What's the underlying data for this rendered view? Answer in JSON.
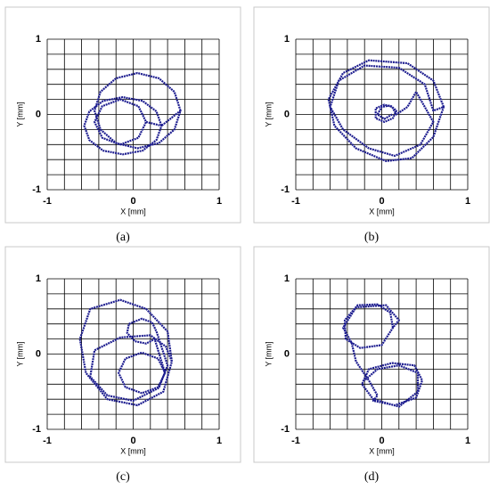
{
  "chart_data": [
    {
      "type": "line",
      "caption": "(a)",
      "x_label": "X [mm]",
      "y_label": "Y [mm]",
      "color": "#1c1c8f",
      "xlim": [
        -1,
        1
      ],
      "ylim": [
        -1,
        1
      ],
      "xticks": [
        -1,
        0,
        1
      ],
      "yticks": [
        -1,
        0,
        1
      ],
      "xgrid": [
        -1,
        -0.8,
        -0.6,
        -0.4,
        -0.2,
        0,
        0.2,
        0.4,
        0.6,
        0.8,
        1
      ],
      "ygrid": [
        -1,
        -0.8,
        -0.6,
        -0.4,
        -0.2,
        0,
        0.2,
        0.4,
        0.6,
        0.8,
        1
      ],
      "x": [
        0.55,
        0.48,
        0.3,
        0.05,
        -0.2,
        -0.38,
        -0.45,
        -0.38,
        -0.2,
        0.05,
        0.3,
        0.48,
        0.55,
        0.33,
        0.27,
        0.11,
        -0.12,
        -0.35,
        -0.51,
        -0.57,
        -0.51,
        -0.35,
        -0.12,
        0.11,
        0.27,
        0.33,
        0.15,
        0.06,
        -0.15,
        -0.36,
        -0.45,
        -0.36,
        -0.15,
        0.06,
        0.15
      ],
      "values": [
        0.05,
        0.3,
        0.48,
        0.55,
        0.48,
        0.3,
        0.05,
        -0.2,
        -0.38,
        -0.45,
        -0.38,
        -0.2,
        0.05,
        -0.15,
        0.04,
        0.18,
        0.23,
        0.18,
        0.04,
        -0.15,
        -0.34,
        -0.48,
        -0.53,
        -0.48,
        -0.34,
        -0.15,
        -0.1,
        0.11,
        0.2,
        0.11,
        -0.1,
        -0.31,
        -0.4,
        -0.31,
        -0.1
      ]
    },
    {
      "type": "line",
      "caption": "(b)",
      "x_label": "X [mm]",
      "y_label": "Y [mm]",
      "color": "#1c1c8f",
      "xlim": [
        -1,
        1
      ],
      "ylim": [
        -1,
        1
      ],
      "xticks": [
        -1,
        0,
        1
      ],
      "yticks": [
        -1,
        0,
        1
      ],
      "xgrid": [
        -1,
        -0.8,
        -0.6,
        -0.4,
        -0.2,
        0,
        0.2,
        0.4,
        0.6,
        0.8,
        1
      ],
      "ygrid": [
        -1,
        -0.8,
        -0.6,
        -0.4,
        -0.2,
        0,
        0.2,
        0.4,
        0.6,
        0.8,
        1
      ],
      "x": [
        0.72,
        0.6,
        0.3,
        -0.15,
        -0.45,
        -0.62,
        -0.55,
        -0.3,
        0.05,
        0.35,
        0.6,
        0.72,
        0.6,
        0.5,
        0.2,
        -0.2,
        -0.5,
        -0.6,
        -0.45,
        -0.15,
        0.15,
        0.45,
        0.6,
        0.4,
        0.3,
        0.17,
        0.12,
        0.03,
        -0.07,
        -0.07,
        0.03,
        0.13,
        0.17,
        0.1,
        0,
        -0.05,
        0.03,
        0.12
      ],
      "values": [
        0.1,
        0.45,
        0.68,
        0.72,
        0.55,
        0.2,
        -0.15,
        -0.45,
        -0.62,
        -0.58,
        -0.3,
        0.1,
        0.05,
        0.4,
        0.62,
        0.65,
        0.45,
        0.1,
        -0.2,
        -0.45,
        -0.55,
        -0.4,
        -0.1,
        0.3,
        0.1,
        0,
        0.1,
        0.13,
        0.08,
        -0.05,
        -0.1,
        -0.05,
        0.05,
        0.12,
        0.1,
        0,
        -0.06,
        0
      ]
    },
    {
      "type": "line",
      "caption": "(c)",
      "x_label": "X [mm]",
      "y_label": "Y [mm]",
      "color": "#1c1c8f",
      "xlim": [
        -1,
        1
      ],
      "ylim": [
        -1,
        1
      ],
      "xticks": [
        -1,
        0,
        1
      ],
      "yticks": [
        -1,
        0,
        1
      ],
      "xgrid": [
        -1,
        -0.8,
        -0.6,
        -0.4,
        -0.2,
        0,
        0.2,
        0.4,
        0.6,
        0.8,
        1
      ],
      "ygrid": [
        -1,
        -0.8,
        -0.6,
        -0.4,
        -0.2,
        0,
        0.2,
        0.4,
        0.6,
        0.8,
        1
      ],
      "x": [
        0.45,
        0.4,
        0.15,
        -0.15,
        -0.5,
        -0.62,
        -0.55,
        -0.3,
        0.05,
        0.35,
        0.45,
        0.38,
        0.2,
        -0.15,
        -0.45,
        -0.5,
        -0.3,
        0,
        0.3,
        0.4,
        0.27,
        0.22,
        0.1,
        -0.05,
        -0.07,
        0.02,
        0.15,
        0.25,
        0.37,
        0.29,
        0.1,
        -0.09,
        -0.17,
        -0.09,
        0.1,
        0.29,
        0.37
      ],
      "values": [
        -0.1,
        0.3,
        0.6,
        0.72,
        0.6,
        0.2,
        -0.25,
        -0.6,
        -0.68,
        -0.5,
        -0.1,
        0.1,
        0.25,
        0.22,
        0.05,
        -0.3,
        -0.55,
        -0.62,
        -0.45,
        -0.15,
        0.3,
        0.42,
        0.47,
        0.4,
        0.28,
        0.17,
        0.14,
        0.2,
        -0.25,
        -0.06,
        0.02,
        -0.06,
        -0.25,
        -0.44,
        -0.52,
        -0.44,
        -0.25
      ]
    },
    {
      "type": "line",
      "caption": "(d)",
      "x_label": "X [mm]",
      "y_label": "Y [mm]",
      "color": "#1c1c8f",
      "xlim": [
        -1,
        1
      ],
      "ylim": [
        -1,
        1
      ],
      "xticks": [
        -1,
        0,
        1
      ],
      "yticks": [
        -1,
        0,
        1
      ],
      "xgrid": [
        -1,
        -0.8,
        -0.6,
        -0.4,
        -0.2,
        0,
        0.2,
        0.4,
        0.6,
        0.8,
        1
      ],
      "ygrid": [
        -1,
        -0.8,
        -0.6,
        -0.4,
        -0.2,
        0,
        0.2,
        0.4,
        0.6,
        0.8,
        1
      ],
      "x": [
        0.13,
        0.1,
        -0.05,
        -0.28,
        -0.43,
        -0.42,
        -0.25,
        0,
        0.13,
        0.2,
        0.05,
        -0.3,
        -0.45,
        -0.35,
        -0.3,
        -0.15,
        -0.05,
        -0.1,
        0.15,
        0.4,
        0.47,
        0.38,
        0.12,
        -0.15,
        -0.23,
        -0.1,
        0.2,
        0.42,
        0.42,
        0.2,
        -0.05,
        -0.2
      ],
      "values": [
        0.35,
        0.55,
        0.66,
        0.65,
        0.45,
        0.2,
        0.08,
        0.12,
        0.35,
        0.45,
        0.65,
        0.62,
        0.35,
        0.15,
        -0.1,
        -0.35,
        -0.55,
        -0.62,
        -0.68,
        -0.58,
        -0.35,
        -0.15,
        -0.12,
        -0.2,
        -0.4,
        -0.6,
        -0.7,
        -0.5,
        -0.25,
        -0.15,
        -0.2,
        -0.35
      ]
    }
  ]
}
